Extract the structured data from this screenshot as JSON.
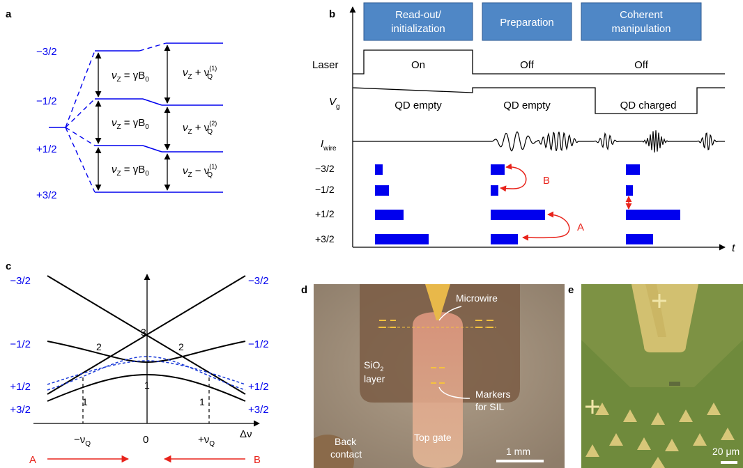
{
  "panel_labels": {
    "a": "a",
    "b": "b",
    "c": "c",
    "d": "d",
    "e": "e"
  },
  "colors": {
    "blue": "#0000ee",
    "blue_box": "#4f87c6",
    "red": "#e8231b",
    "black": "#000000"
  },
  "panel_a": {
    "levels": [
      "−3/2",
      "−1/2",
      "+1/2",
      "+3/2"
    ],
    "left_eq": "ν",
    "left_eq_sub": "Z",
    "left_eq_rest": " = γB",
    "left_eq_sub0": "0",
    "right_eqs": [
      {
        "pre": "ν",
        "sub": "Z",
        "op": " + ν",
        "q": "Q",
        "sup": "(1)"
      },
      {
        "pre": "ν",
        "sub": "Z",
        "op": " + ν",
        "q": "Q",
        "sup": "(2)"
      },
      {
        "pre": "ν",
        "sub": "Z",
        "op": " − ν",
        "q": "Q",
        "sup": "(1)"
      }
    ]
  },
  "panel_b": {
    "phases": [
      "Read-out/ initialization",
      "Preparation",
      "Coherent manipulation"
    ],
    "phase_lines": [
      [
        "Read-out/",
        "initialization"
      ],
      [
        "Preparation"
      ],
      [
        "Coherent",
        "manipulation"
      ]
    ],
    "row_labels": {
      "laser": "Laser",
      "vg": "V",
      "vg_sub": "g",
      "iwire": "I",
      "iwire_sub": "wire"
    },
    "laser_states": [
      "On",
      "Off",
      "Off"
    ],
    "vg_states": [
      "QD empty",
      "QD empty",
      "QD charged"
    ],
    "levels": [
      "−3/2",
      "−1/2",
      "+1/2",
      "+3/2"
    ],
    "populations": [
      [
        0.12,
        0.22,
        0.45,
        0.85
      ],
      [
        0.22,
        0.12,
        0.87,
        0.43
      ],
      [
        0.22,
        0.11,
        0.87,
        0.43
      ]
    ],
    "arrows": {
      "A": "A",
      "B": "B"
    },
    "t_label": "t"
  },
  "panel_c": {
    "left_levels": [
      "−3/2",
      "−1/2",
      "+1/2",
      "+3/2"
    ],
    "right_levels": [
      "−3/2",
      "−1/2",
      "+1/2",
      "+3/2"
    ],
    "crossing_labels": [
      "3",
      "2",
      "2",
      "1",
      "1",
      "1"
    ],
    "x_ticks": {
      "neg": "−ν",
      "neg_sub": "Q",
      "zero": "0",
      "pos": "+ν",
      "pos_sub": "Q"
    },
    "x_axis": "Δν",
    "arrows": {
      "A": "A",
      "B": "B"
    }
  },
  "panel_d": {
    "annotations": {
      "microwire": "Microwire",
      "sio2": "SiO",
      "sio2_sub": "2",
      "layer": "layer",
      "markers1": "Markers",
      "markers2": "for SIL",
      "topgate": "Top gate",
      "back1": "Back",
      "back2": "contact",
      "scale": "1 mm"
    }
  },
  "panel_e": {
    "scale": "20 μm"
  }
}
